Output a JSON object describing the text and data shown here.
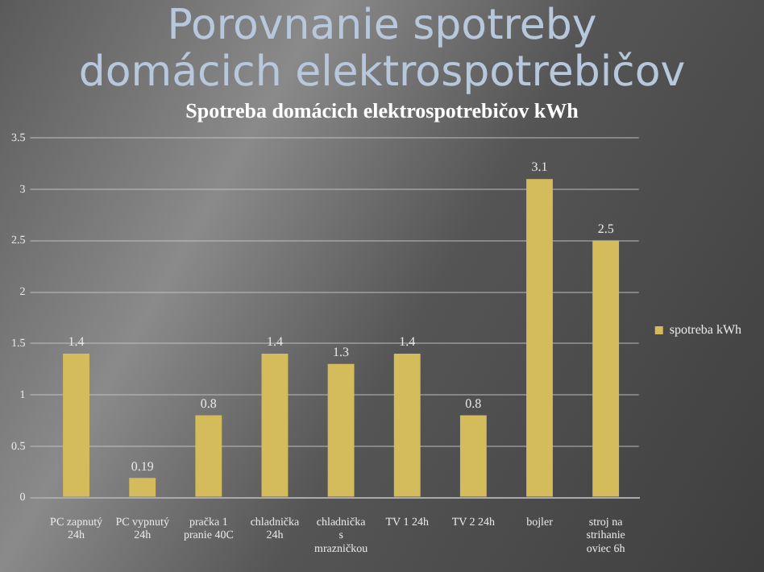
{
  "chart_data": {
    "type": "bar",
    "title": "Porovnanie spotreby domácich elektrospotrebičov",
    "subtitle": "Spotreba domácich elektrospotrebičov kWh",
    "categories": [
      "PC zapnutý 24h",
      "PC vypnutý 24h",
      "pračka 1 pranie 40C",
      "chladnička 24h",
      "chladnička s mrazničkou",
      "TV 1 24h",
      "TV 2 24h",
      "bojler",
      "stroj na strihanie oviec 6h"
    ],
    "series": [
      {
        "name": "spotreba kWh",
        "color": "#d4bc5c",
        "values": [
          1.4,
          0.19,
          0.8,
          1.4,
          1.3,
          1.4,
          0.8,
          3.1,
          2.5
        ]
      }
    ],
    "ylim": [
      0,
      3.5
    ],
    "yticks": [
      0,
      0.5,
      1,
      1.5,
      2,
      2.5,
      3,
      3.5
    ],
    "grid": "y",
    "legend": "right",
    "data_labels": true
  }
}
